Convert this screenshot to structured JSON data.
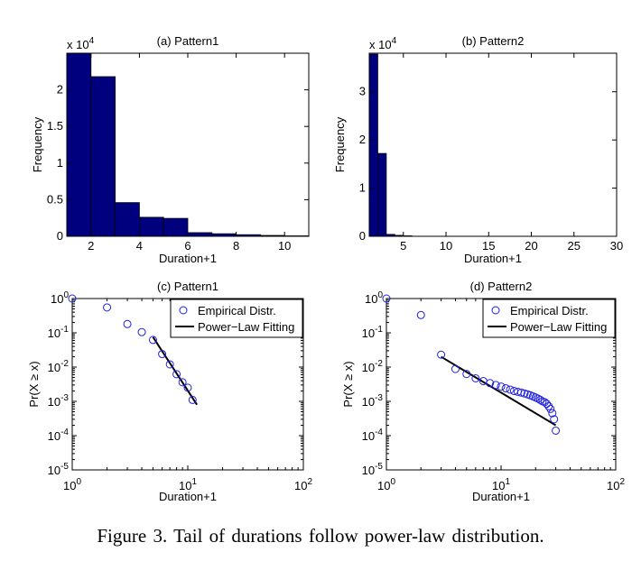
{
  "caption": "Figure 3.   Tail of durations follow power-law distribution.",
  "colors": {
    "bar": "#00007f",
    "marker": "#2020e0",
    "fit": "#000000"
  },
  "chart_data": [
    {
      "type": "bar",
      "title": "(a) Pattern1",
      "xlabel": "Duration+1",
      "ylabel": "Frequency",
      "y_multiplier": "x 10",
      "y_multiplier_exp": "4",
      "xlim": [
        1,
        11
      ],
      "ylim": [
        0,
        2.5
      ],
      "xticks": [
        2,
        4,
        6,
        8,
        10
      ],
      "xtick_labels": [
        "2",
        "4",
        "6",
        "8",
        "10"
      ],
      "yticks": [
        0,
        0.5,
        1,
        1.5,
        2
      ],
      "ytick_labels": [
        "0",
        "0.5",
        "1",
        "1.5",
        "2"
      ],
      "bin_width": 1,
      "bins": [
        1,
        2,
        3,
        4,
        5,
        6,
        7,
        8,
        9,
        10
      ],
      "values": [
        2.5,
        2.18,
        0.46,
        0.26,
        0.245,
        0.05,
        0.035,
        0.022,
        0.012,
        0.006
      ]
    },
    {
      "type": "bar",
      "title": "(b) Pattern2",
      "xlabel": "Duration+1",
      "ylabel": "Frequency",
      "y_multiplier": "x 10",
      "y_multiplier_exp": "4",
      "xlim": [
        1,
        30
      ],
      "ylim": [
        0,
        3.8
      ],
      "xticks": [
        5,
        10,
        15,
        20,
        25,
        30
      ],
      "xtick_labels": [
        "5",
        "10",
        "15",
        "20",
        "25",
        "30"
      ],
      "yticks": [
        0,
        1,
        2,
        3
      ],
      "ytick_labels": [
        "0",
        "1",
        "2",
        "3"
      ],
      "bin_width": 1,
      "bins": [
        1,
        2,
        3,
        4,
        5
      ],
      "values": [
        3.78,
        1.72,
        0.04,
        0.02,
        0.01
      ]
    },
    {
      "type": "scatter",
      "scale": "loglog",
      "title": "(c) Pattern1",
      "xlabel": "Duration+1",
      "ylabel": "Pr(X ≥ x)",
      "xlim": [
        1,
        100
      ],
      "ylim": [
        1e-05,
        1
      ],
      "xtick_labels": [
        {
          "v": 1,
          "base": "10",
          "exp": "0"
        },
        {
          "v": 10,
          "base": "10",
          "exp": "1"
        },
        {
          "v": 100,
          "base": "10",
          "exp": "2"
        }
      ],
      "ytick_labels": [
        {
          "v": 1,
          "base": "10",
          "exp": "0"
        },
        {
          "v": 0.1,
          "base": "10",
          "exp": "-1"
        },
        {
          "v": 0.01,
          "base": "10",
          "exp": "-2"
        },
        {
          "v": 0.001,
          "base": "10",
          "exp": "-3"
        },
        {
          "v": 0.0001,
          "base": "10",
          "exp": "-4"
        },
        {
          "v": 1e-05,
          "base": "10",
          "exp": "-5"
        }
      ],
      "legend": {
        "placement": "top-right",
        "entries": [
          "Empirical Distr.",
          "Power−Law Fitting"
        ]
      },
      "series": [
        {
          "name": "Empirical Distr.",
          "x": [
            1,
            2,
            3,
            4,
            5,
            6,
            7,
            8,
            9,
            10,
            11
          ],
          "y": [
            1,
            0.55,
            0.18,
            0.105,
            0.062,
            0.024,
            0.012,
            0.0062,
            0.0036,
            0.0025,
            0.0011
          ]
        },
        {
          "name": "Power−Law Fitting",
          "x": [
            5,
            12
          ],
          "y": [
            0.075,
            0.0008
          ]
        }
      ]
    },
    {
      "type": "scatter",
      "scale": "loglog",
      "title": "(d) Pattern2",
      "xlabel": "Duration+1",
      "ylabel": "Pr(X ≥ x)",
      "xlim": [
        1,
        100
      ],
      "ylim": [
        1e-05,
        1
      ],
      "xtick_labels": [
        {
          "v": 1,
          "base": "10",
          "exp": "0"
        },
        {
          "v": 10,
          "base": "10",
          "exp": "1"
        },
        {
          "v": 100,
          "base": "10",
          "exp": "2"
        }
      ],
      "ytick_labels": [
        {
          "v": 1,
          "base": "10",
          "exp": "0"
        },
        {
          "v": 0.1,
          "base": "10",
          "exp": "-1"
        },
        {
          "v": 0.01,
          "base": "10",
          "exp": "-2"
        },
        {
          "v": 0.001,
          "base": "10",
          "exp": "-3"
        },
        {
          "v": 0.0001,
          "base": "10",
          "exp": "-4"
        },
        {
          "v": 1e-05,
          "base": "10",
          "exp": "-5"
        }
      ],
      "legend": {
        "placement": "top-right",
        "entries": [
          "Empirical Distr.",
          "Power−Law Fitting"
        ]
      },
      "series": [
        {
          "name": "Empirical Distr.",
          "x": [
            1,
            2,
            3,
            4,
            5,
            6,
            7,
            8,
            9,
            10,
            11,
            12,
            13,
            14,
            15,
            16,
            17,
            18,
            19,
            20,
            21,
            22,
            23,
            24,
            25,
            26,
            27,
            28,
            29,
            30
          ],
          "y": [
            1,
            0.33,
            0.023,
            0.0088,
            0.0063,
            0.0047,
            0.0039,
            0.0034,
            0.003,
            0.0027,
            0.0024,
            0.0022,
            0.002,
            0.0019,
            0.0018,
            0.0017,
            0.0016,
            0.0015,
            0.0014,
            0.0013,
            0.0012,
            0.0011,
            0.001,
            0.00095,
            0.00085,
            0.00072,
            0.0006,
            0.00045,
            0.0003,
            0.00014
          ]
        },
        {
          "name": "Power−Law Fitting",
          "x": [
            3,
            30
          ],
          "y": [
            0.02,
            0.0002
          ]
        }
      ]
    }
  ]
}
